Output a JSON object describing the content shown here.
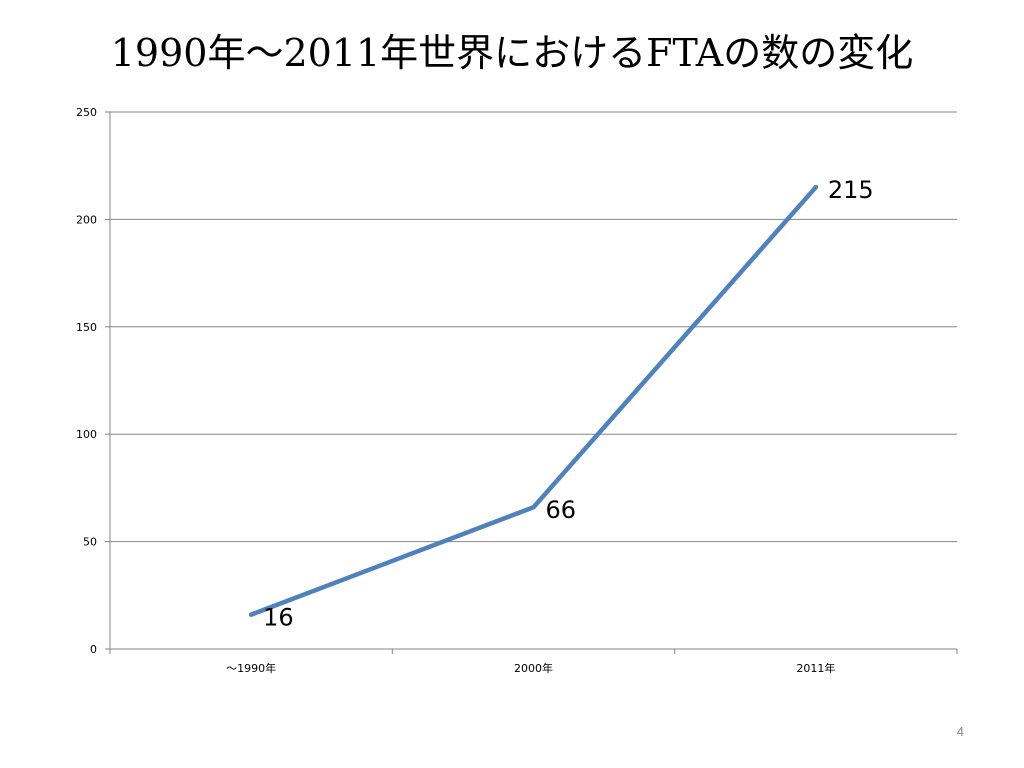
{
  "slide": {
    "title": "1990年～2011年世界におけるFTAの数の変化",
    "page_number": "4"
  },
  "chart_data": {
    "type": "line",
    "title": "",
    "xlabel": "",
    "ylabel": "",
    "categories": [
      "～1990年",
      "2000年",
      "2011年"
    ],
    "series": [
      {
        "values": [
          16,
          66,
          215
        ],
        "color": "#4f81bd"
      }
    ],
    "data_labels": [
      "16",
      "66",
      "215"
    ],
    "ylim": [
      0,
      250
    ],
    "yticks": [
      0,
      50,
      100,
      150,
      200,
      250
    ],
    "grid": true,
    "legend": "none"
  }
}
